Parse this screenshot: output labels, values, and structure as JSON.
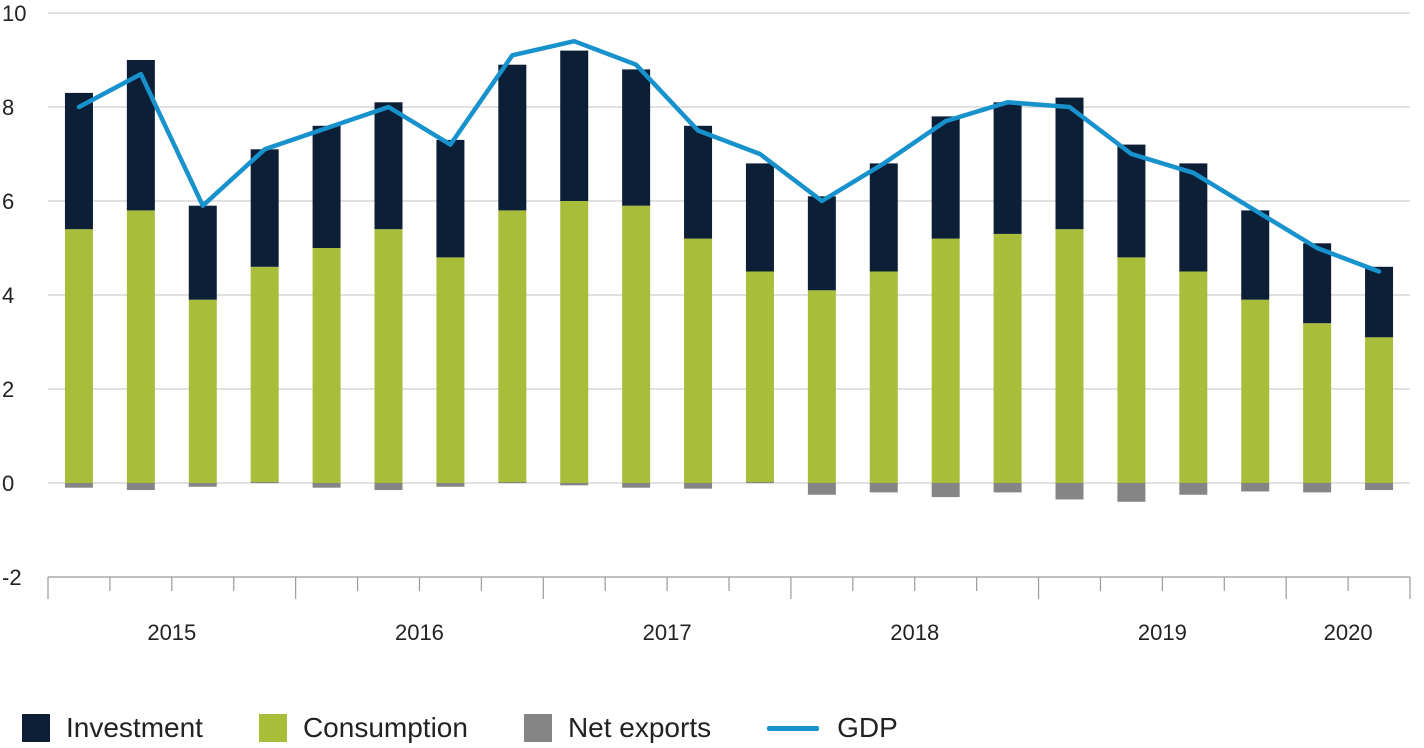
{
  "chart_data": {
    "type": "bar",
    "stacked": true,
    "title": "",
    "xlabel": "",
    "ylabel": "",
    "ylim": [
      -2,
      10
    ],
    "y_ticks": [
      10,
      8,
      6,
      4,
      2,
      0,
      -2
    ],
    "grid": "horizontal",
    "legend_position": "bottom",
    "year_labels": [
      {
        "label": "2015",
        "start_index": 0,
        "count": 4
      },
      {
        "label": "2016",
        "start_index": 4,
        "count": 4
      },
      {
        "label": "2017",
        "start_index": 8,
        "count": 4
      },
      {
        "label": "2018",
        "start_index": 12,
        "count": 4
      },
      {
        "label": "2019",
        "start_index": 16,
        "count": 4
      },
      {
        "label": "2020",
        "start_index": 20,
        "count": 2
      }
    ],
    "series": [
      {
        "name": "Investment",
        "color": "#0d1f36",
        "values": [
          2.9,
          3.2,
          2.0,
          2.5,
          2.6,
          2.7,
          2.5,
          3.1,
          3.2,
          2.9,
          2.4,
          2.3,
          2.0,
          2.3,
          2.6,
          2.8,
          2.8,
          2.4,
          2.3,
          1.9,
          1.7,
          1.5
        ]
      },
      {
        "name": "Consumption",
        "color": "#a8be3b",
        "values": [
          5.4,
          5.8,
          3.9,
          4.6,
          5.0,
          5.4,
          4.8,
          5.8,
          6.0,
          5.9,
          5.2,
          4.5,
          4.1,
          4.5,
          5.2,
          5.3,
          5.4,
          4.8,
          4.5,
          3.9,
          3.4,
          3.1
        ]
      },
      {
        "name": "Net exports",
        "color": "#858585",
        "values": [
          -0.1,
          -0.15,
          -0.08,
          0.02,
          -0.1,
          -0.15,
          -0.08,
          0.02,
          -0.05,
          -0.1,
          -0.12,
          0.02,
          -0.25,
          -0.2,
          -0.3,
          -0.2,
          -0.35,
          -0.4,
          -0.25,
          -0.18,
          -0.2,
          -0.15
        ]
      },
      {
        "name": "GDP",
        "type": "line",
        "color": "#1892cc",
        "values": [
          8.0,
          8.7,
          5.9,
          7.1,
          7.55,
          8.0,
          7.2,
          9.1,
          9.4,
          8.9,
          7.5,
          7.0,
          6.0,
          6.8,
          7.7,
          8.1,
          8.0,
          7.0,
          6.6,
          5.8,
          5.0,
          4.5
        ]
      }
    ]
  }
}
